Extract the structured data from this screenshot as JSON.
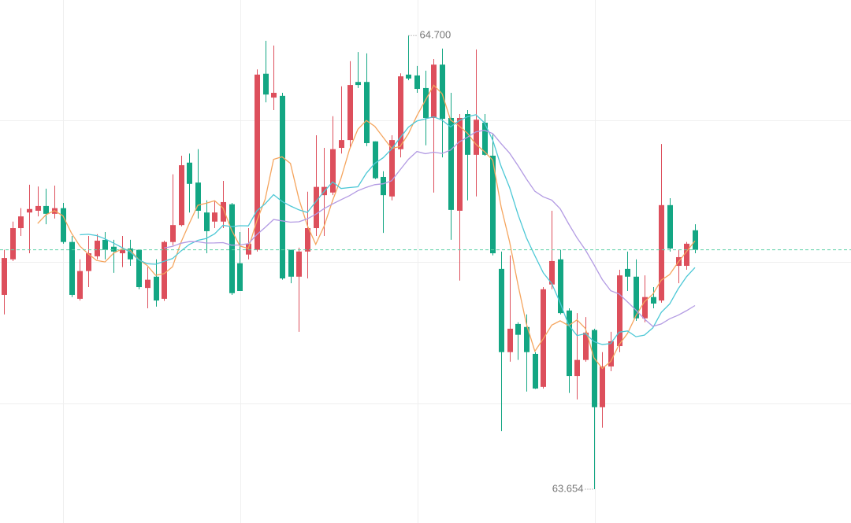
{
  "chart_data": {
    "type": "candlestick",
    "open": [
      64.102,
      64.184,
      64.256,
      64.292,
      64.296,
      64.307,
      64.289,
      64.302,
      64.224,
      64.093,
      64.157,
      64.191,
      64.229,
      64.213,
      64.198,
      64.209,
      64.206,
      64.118,
      64.144,
      64.093,
      64.224,
      64.263,
      64.407,
      64.361,
      64.292,
      64.271,
      64.271,
      64.311,
      64.175,
      64.195,
      64.206,
      64.612,
      64.557,
      64.561,
      64.206,
      64.144,
      64.202,
      64.256,
      64.332,
      64.338,
      64.441,
      64.459,
      64.593,
      64.593,
      64.456,
      64.374,
      64.329,
      64.438,
      64.61,
      64.608,
      64.579,
      64.51,
      64.633,
      64.51,
      64.296,
      64.519,
      64.425,
      64.499,
      64.423,
      64.162,
      63.97,
      64.035,
      64.028,
      63.966,
      63.89,
      64.126,
      64.184,
      64.066,
      63.915,
      63.952,
      64.021,
      63.843,
      63.937,
      63.984,
      64.162,
      64.144,
      64.048,
      64.097,
      64.089,
      64.309,
      64.169,
      64.169,
      64.251
    ],
    "high": [
      64.206,
      64.271,
      64.302,
      64.356,
      64.352,
      64.347,
      64.354,
      64.314,
      64.238,
      64.184,
      64.238,
      64.242,
      64.247,
      64.229,
      64.238,
      64.229,
      64.206,
      64.166,
      64.184,
      64.227,
      64.38,
      64.423,
      64.428,
      64.438,
      64.32,
      64.318,
      64.365,
      64.314,
      64.247,
      64.256,
      64.622,
      64.688,
      64.677,
      64.568,
      64.206,
      64.211,
      64.34,
      64.47,
      64.441,
      64.514,
      64.583,
      64.641,
      64.662,
      64.659,
      64.456,
      64.387,
      64.47,
      64.613,
      64.7,
      64.63,
      64.619,
      64.646,
      64.67,
      64.568,
      64.519,
      64.528,
      64.668,
      64.519,
      64.474,
      64.202,
      64.193,
      64.039,
      64.057,
      63.97,
      64.12,
      64.296,
      64.206,
      64.071,
      64.06,
      64.051,
      64.024,
      63.97,
      64.017,
      64.16,
      64.202,
      64.184,
      64.147,
      64.12,
      64.45,
      64.325,
      64.206,
      64.224,
      64.265
    ],
    "low": [
      64.057,
      64.18,
      64.238,
      64.198,
      64.283,
      64.265,
      64.278,
      64.22,
      64.097,
      64.089,
      64.12,
      64.184,
      64.184,
      64.153,
      64.166,
      64.169,
      64.115,
      64.071,
      64.075,
      64.088,
      64.216,
      64.26,
      64.292,
      64.278,
      64.198,
      64.256,
      64.256,
      64.102,
      64.111,
      64.184,
      64.202,
      64.546,
      64.528,
      64.137,
      64.129,
      64.017,
      64.14,
      64.238,
      64.238,
      64.332,
      64.428,
      64.441,
      64.579,
      64.445,
      64.369,
      64.245,
      64.32,
      64.419,
      64.597,
      64.568,
      64.447,
      64.338,
      64.419,
      64.229,
      64.135,
      64.32,
      64.329,
      64.423,
      64.193,
      63.788,
      63.948,
      63.952,
      63.879,
      63.885,
      63.886,
      64.115,
      64.057,
      63.876,
      63.861,
      63.948,
      63.654,
      63.796,
      63.926,
      63.97,
      64.111,
      64.042,
      64.039,
      64.071,
      64.084,
      64.202,
      64.129,
      64.16,
      64.198
    ],
    "close": [
      64.187,
      64.256,
      64.283,
      64.3,
      64.307,
      64.289,
      64.302,
      64.224,
      64.102,
      64.157,
      64.198,
      64.227,
      64.206,
      64.202,
      64.206,
      64.184,
      64.12,
      64.137,
      64.089,
      64.224,
      64.263,
      64.401,
      64.358,
      64.296,
      64.249,
      64.292,
      64.316,
      64.106,
      64.111,
      64.22,
      64.61,
      64.564,
      64.568,
      64.14,
      64.144,
      64.202,
      64.256,
      64.351,
      64.351,
      64.438,
      64.459,
      64.586,
      64.586,
      64.452,
      64.371,
      64.332,
      64.459,
      64.606,
      64.601,
      64.577,
      64.51,
      64.633,
      64.508,
      64.298,
      64.51,
      64.425,
      64.506,
      64.425,
      64.198,
      63.97,
      64.024,
      64.01,
      63.97,
      63.886,
      64.115,
      64.18,
      64.06,
      63.915,
      63.952,
      64.015,
      63.843,
      63.937,
      63.995,
      64.147,
      64.144,
      64.048,
      64.097,
      64.082,
      64.309,
      64.209,
      64.189,
      64.22,
      64.206
    ],
    "up_color": "#dd4f5c",
    "down_color": "#13a683",
    "ylim": [
      63.576,
      64.782
    ],
    "max_label": "64.700",
    "min_label": "63.654",
    "last_price_color": "#5fd1a8",
    "moving_averages": [
      {
        "period": 5,
        "color": "#f5a55e"
      },
      {
        "period": 10,
        "color": "#4dc8d6"
      },
      {
        "period": 20,
        "color": "#b39be3"
      }
    ]
  }
}
